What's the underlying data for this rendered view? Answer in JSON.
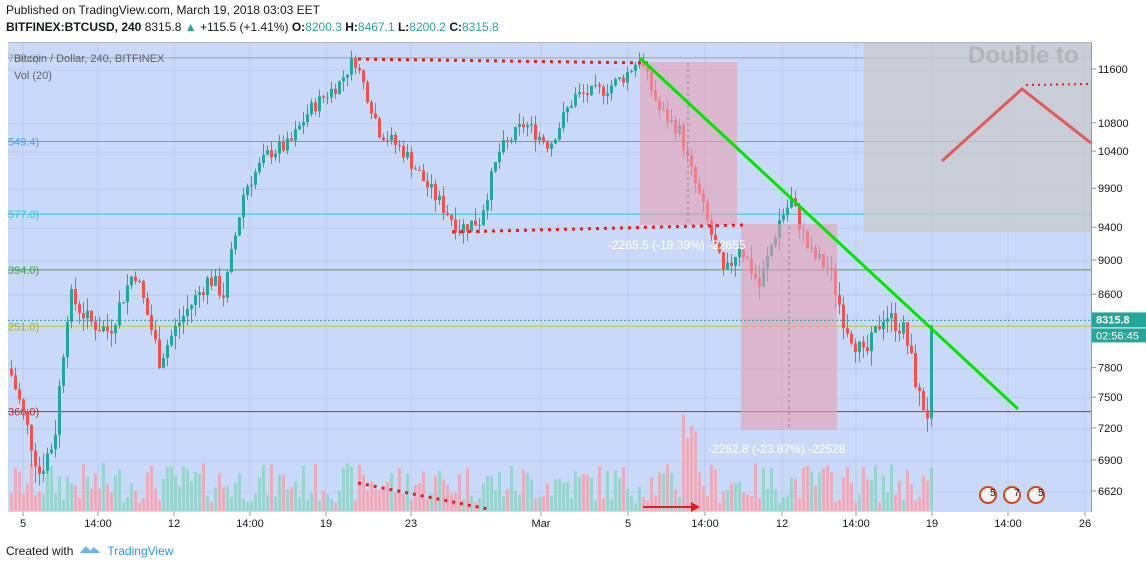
{
  "header": {
    "published": "Published on TradingView.com, March 19, 2018 03:03 EET",
    "symbol": "BITFINEX:BTCUSD, 240",
    "last": "8315.8",
    "change": "+115.5 (+1.41%)",
    "o_label": "O:",
    "o_value": "8200.3",
    "h_label": "H:",
    "h_value": "8467.1",
    "l_label": "L:",
    "l_value": "8200.2",
    "c_label": "C:",
    "c_value": "8315.8"
  },
  "legend": {
    "title": "Bitcoin / Dollar, 240, BITFINEX",
    "vol": "Vol (20)"
  },
  "footer": {
    "created": "Created with",
    "brand": "TradingView"
  },
  "price_badge": {
    "price": "8315.8",
    "countdown": "02:56:45"
  },
  "annotations": {
    "measure1": "-2265.5 (-19.39%) -22655",
    "measure2": "-2252.8 (-23.87%) -22528",
    "pattern_label": "Double to"
  },
  "fib_labels": [
    "788.0)",
    "549.4)",
    "577.0)",
    "394.0)",
    "251.0)",
    "366.0)"
  ],
  "colors": {
    "up": "#26a69a",
    "down": "#ef5350",
    "trend": "#00e600",
    "bg": "#c9daf8"
  },
  "chart_data": {
    "type": "candlestick",
    "y_axis": {
      "ticks": [
        11600,
        10800,
        10400,
        9900,
        9400,
        9000,
        8600,
        7800,
        7500,
        7200,
        6900,
        6620
      ],
      "scale": "log"
    },
    "x_axis": {
      "ticks": [
        "5",
        "14:00",
        "12",
        "14:00",
        "19",
        "23",
        "Mar",
        "5",
        "14:00",
        "12",
        "14:00",
        "19",
        "14:00",
        "26"
      ]
    },
    "horizontal_levels": [
      11788,
      10549,
      9577,
      8894,
      8251,
      7366
    ],
    "events": [
      "5",
      "7",
      "5"
    ],
    "pattern_label": "Double to"
  }
}
